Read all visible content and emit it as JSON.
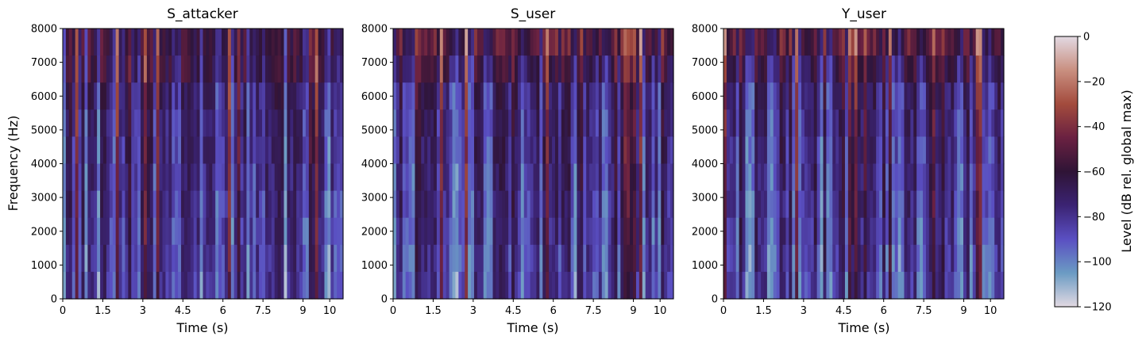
{
  "chart_data": [
    {
      "type": "heatmap",
      "title": "S_attacker",
      "xlabel": "Time (s)",
      "ylabel": "Frequency (Hz)",
      "xlim": [
        0,
        10.5
      ],
      "ylim": [
        0,
        8000
      ],
      "xticks": [
        "0",
        "1.5",
        "3",
        "4.5",
        "6",
        "7.5",
        "9",
        "10"
      ],
      "xtick_values": [
        0,
        1.5,
        3,
        4.5,
        6,
        7.5,
        9,
        10
      ],
      "yticks": [
        "0",
        "1000",
        "2000",
        "3000",
        "4000",
        "5000",
        "6000",
        "7000",
        "8000"
      ],
      "ytick_values": [
        0,
        1000,
        2000,
        3000,
        4000,
        5000,
        6000,
        7000,
        8000
      ]
    },
    {
      "type": "heatmap",
      "title": "S_user",
      "xlabel": "Time (s)",
      "ylabel": "",
      "xlim": [
        0,
        10.5
      ],
      "ylim": [
        0,
        8000
      ],
      "xticks": [
        "0",
        "1.5",
        "3",
        "4.5",
        "6",
        "7.5",
        "9",
        "10"
      ],
      "xtick_values": [
        0,
        1.5,
        3,
        4.5,
        6,
        7.5,
        9,
        10
      ],
      "yticks": [
        "0",
        "1000",
        "2000",
        "3000",
        "4000",
        "5000",
        "6000",
        "7000",
        "8000"
      ],
      "ytick_values": [
        0,
        1000,
        2000,
        3000,
        4000,
        5000,
        6000,
        7000,
        8000
      ]
    },
    {
      "type": "heatmap",
      "title": "Y_user",
      "xlabel": "Time (s)",
      "ylabel": "",
      "xlim": [
        0,
        10.5
      ],
      "ylim": [
        0,
        8000
      ],
      "xticks": [
        "0",
        "1.5",
        "3",
        "4.5",
        "6",
        "7.5",
        "9",
        "10"
      ],
      "xtick_values": [
        0,
        1.5,
        3,
        4.5,
        6,
        7.5,
        9,
        10
      ],
      "yticks": [
        "0",
        "1000",
        "2000",
        "3000",
        "4000",
        "5000",
        "6000",
        "7000",
        "8000"
      ],
      "ytick_values": [
        0,
        1000,
        2000,
        3000,
        4000,
        5000,
        6000,
        7000,
        8000
      ]
    }
  ],
  "colorbar": {
    "label": "Level (dB rel. global max)",
    "range": [
      -120,
      0
    ],
    "ticks": [
      "0",
      "−20",
      "−40",
      "−60",
      "−80",
      "−100",
      "−120"
    ],
    "tick_values": [
      0,
      -20,
      -40,
      -60,
      -80,
      -100,
      -120
    ],
    "colormap": [
      "#e2d9e2",
      "#6b9bc3",
      "#5a4fc2",
      "#3b2373",
      "#2f1436",
      "#6a2141",
      "#a34b3d",
      "#c98f80",
      "#e2d9e2"
    ]
  }
}
